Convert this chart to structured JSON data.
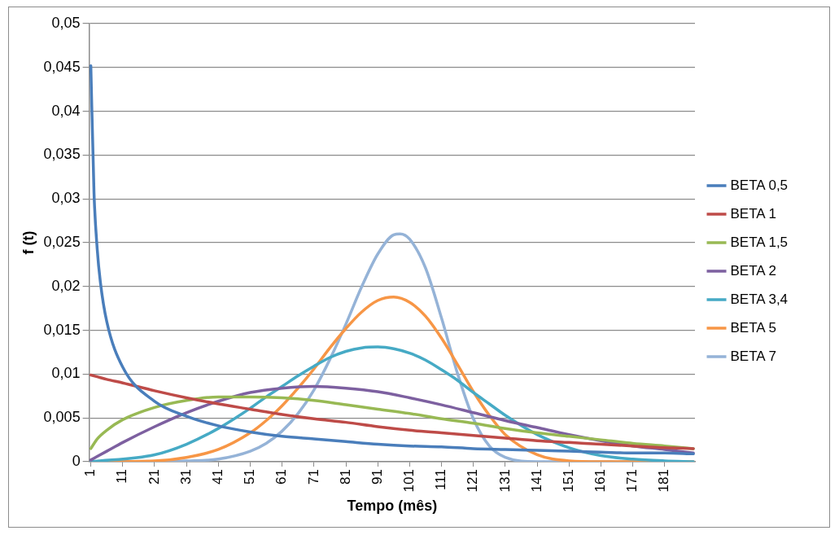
{
  "chart_data": {
    "type": "line",
    "xlabel": "Tempo (mês)",
    "ylabel": "f (t)",
    "xlim": [
      0.5,
      190.5
    ],
    "xticks": [
      1,
      11,
      21,
      31,
      41,
      51,
      61,
      71,
      81,
      91,
      101,
      111,
      121,
      131,
      141,
      151,
      161,
      171,
      181
    ],
    "ylim": [
      0,
      0.05
    ],
    "yticks": [
      {
        "value": 0,
        "label": "0"
      },
      {
        "value": 0.005,
        "label": "0,005"
      },
      {
        "value": 0.01,
        "label": "0,01"
      },
      {
        "value": 0.015,
        "label": "0,015"
      },
      {
        "value": 0.02,
        "label": "0,02"
      },
      {
        "value": 0.025,
        "label": "0,025"
      },
      {
        "value": 0.03,
        "label": "0,03"
      },
      {
        "value": 0.035,
        "label": "0,035"
      },
      {
        "value": 0.04,
        "label": "0,04"
      },
      {
        "value": 0.045,
        "label": "0,045"
      },
      {
        "value": 0.05,
        "label": "0,05"
      }
    ],
    "grid": "y",
    "legend": "right",
    "series": [
      {
        "name": "BETA 0,5",
        "color": "#4a7ebb",
        "x": [
          1,
          2,
          3,
          4,
          6,
          11,
          21,
          31,
          41,
          51,
          61,
          71,
          81,
          91,
          101,
          111,
          121,
          131,
          141,
          151,
          161,
          171,
          181,
          190
        ],
        "values": [
          0.0452,
          0.0307,
          0.0243,
          0.0205,
          0.016,
          0.0108,
          0.0069,
          0.0052,
          0.0041,
          0.0034,
          0.0029,
          0.0026,
          0.0023,
          0.002,
          0.0018,
          0.0017,
          0.0015,
          0.0014,
          0.0013,
          0.0012,
          0.0011,
          0.001,
          0.001,
          0.0009
        ]
      },
      {
        "name": "BETA 1",
        "color": "#be4b48",
        "x": [
          1,
          3,
          6,
          11,
          21,
          31,
          41,
          51,
          61,
          71,
          81,
          91,
          101,
          111,
          121,
          131,
          141,
          151,
          161,
          171,
          181,
          190
        ],
        "values": [
          0.0099,
          0.0097,
          0.0094,
          0.009,
          0.0081,
          0.0073,
          0.0066,
          0.006,
          0.0054,
          0.0049,
          0.0045,
          0.004,
          0.0036,
          0.0033,
          0.003,
          0.0027,
          0.0024,
          0.0022,
          0.002,
          0.0018,
          0.0016,
          0.0015
        ]
      },
      {
        "name": "BETA 1,5",
        "color": "#98b954",
        "x": [
          1,
          3,
          6,
          11,
          21,
          31,
          41,
          51,
          61,
          71,
          81,
          91,
          101,
          111,
          121,
          131,
          141,
          151,
          161,
          171,
          181,
          190
        ],
        "values": [
          0.0015,
          0.0026,
          0.0036,
          0.0048,
          0.0062,
          0.007,
          0.0074,
          0.0074,
          0.0073,
          0.007,
          0.0065,
          0.006,
          0.0055,
          0.0049,
          0.0044,
          0.0038,
          0.0033,
          0.0029,
          0.0025,
          0.0021,
          0.0018,
          0.0015
        ]
      },
      {
        "name": "BETA 2",
        "color": "#7d60a0",
        "x": [
          1,
          3,
          6,
          11,
          21,
          31,
          41,
          51,
          61,
          71,
          81,
          91,
          101,
          111,
          121,
          131,
          141,
          151,
          161,
          171,
          181,
          190
        ],
        "values": [
          0.0002,
          0.0006,
          0.0012,
          0.0022,
          0.004,
          0.0056,
          0.0069,
          0.0079,
          0.0084,
          0.0086,
          0.0084,
          0.008,
          0.0073,
          0.0065,
          0.0056,
          0.0047,
          0.0039,
          0.0031,
          0.0024,
          0.0018,
          0.0014,
          0.001
        ]
      },
      {
        "name": "BETA 3,4",
        "color": "#46aac5",
        "x": [
          1,
          21,
          31,
          41,
          51,
          56,
          61,
          66,
          71,
          76,
          81,
          86,
          91,
          96,
          101,
          106,
          111,
          116,
          121,
          126,
          131,
          141,
          151,
          161,
          171,
          181,
          190
        ],
        "values": [
          0,
          0.0008,
          0.002,
          0.0038,
          0.0061,
          0.0074,
          0.0086,
          0.0098,
          0.0109,
          0.0119,
          0.0126,
          0.013,
          0.0131,
          0.0129,
          0.0124,
          0.0116,
          0.0105,
          0.0093,
          0.0079,
          0.0066,
          0.0053,
          0.0031,
          0.0016,
          0.0007,
          0.0003,
          0.0001,
          0
        ]
      },
      {
        "name": "BETA 5",
        "color": "#f79646",
        "x": [
          1,
          21,
          31,
          41,
          51,
          56,
          61,
          66,
          71,
          76,
          81,
          86,
          91,
          96,
          101,
          106,
          111,
          116,
          121,
          126,
          131,
          141,
          151,
          161,
          171,
          181,
          190
        ],
        "values": [
          0,
          0.0001,
          0.0005,
          0.0014,
          0.0033,
          0.0047,
          0.0064,
          0.0084,
          0.0106,
          0.013,
          0.0152,
          0.0171,
          0.0184,
          0.0188,
          0.0182,
          0.0166,
          0.0141,
          0.0111,
          0.008,
          0.0053,
          0.0031,
          0.0008,
          0.0001,
          0,
          0,
          0,
          0
        ]
      },
      {
        "name": "BETA 7",
        "color": "#95b3d7",
        "x": [
          1,
          21,
          31,
          41,
          51,
          56,
          61,
          66,
          71,
          76,
          81,
          86,
          91,
          96,
          98,
          101,
          106,
          111,
          116,
          121,
          126,
          131,
          141,
          151,
          161,
          171,
          181,
          190
        ],
        "values": [
          0,
          0,
          0.0001,
          0.0003,
          0.0012,
          0.0021,
          0.0035,
          0.0055,
          0.0082,
          0.0117,
          0.0157,
          0.02,
          0.0237,
          0.0259,
          0.026,
          0.0254,
          0.0221,
          0.0164,
          0.0101,
          0.0049,
          0.0018,
          0.0005,
          0,
          0,
          0,
          0,
          0,
          0
        ]
      }
    ]
  }
}
